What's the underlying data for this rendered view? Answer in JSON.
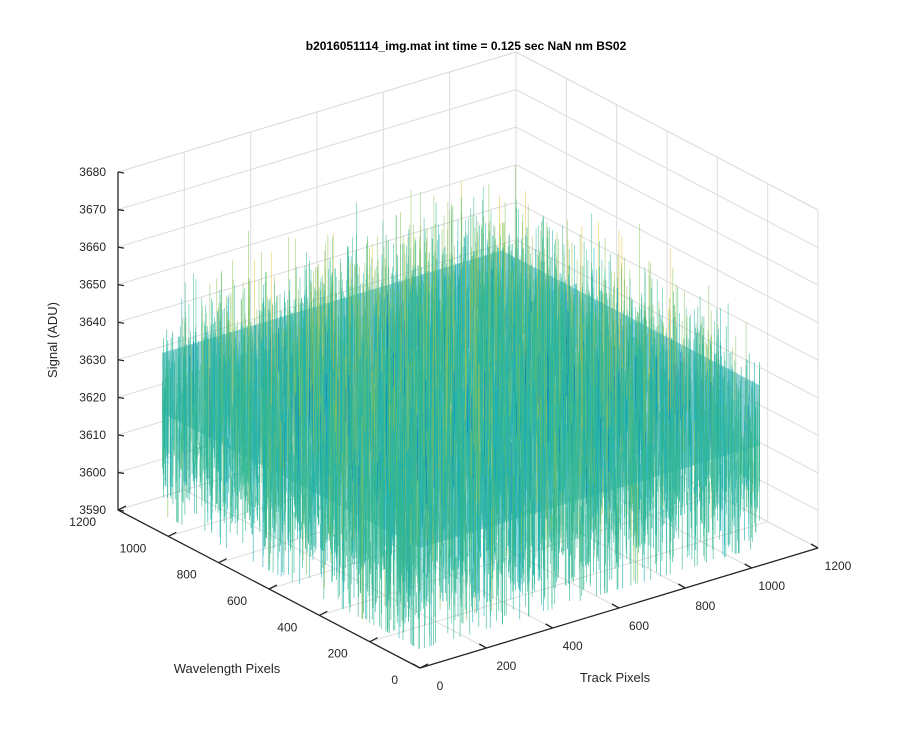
{
  "chart_data": {
    "type": "surface",
    "title": "b2016051114_img.mat int time = 0.125 sec  NaN nm BS02",
    "xlabel": "Track Pixels",
    "ylabel": "Wavelength Pixels",
    "zlabel": "Signal (ADU)",
    "xlim": [
      0,
      1200
    ],
    "ylim": [
      0,
      1200
    ],
    "zlim": [
      3590,
      3680
    ],
    "x_ticks": [
      "0",
      "200",
      "400",
      "600",
      "800",
      "1000",
      "1200"
    ],
    "y_ticks": [
      "0",
      "200",
      "400",
      "600",
      "800",
      "1000",
      "1200"
    ],
    "z_ticks": [
      "3590",
      "3600",
      "3610",
      "3620",
      "3630",
      "3640",
      "3650",
      "3660",
      "3670",
      "3680"
    ],
    "surface": {
      "x_extent": [
        0,
        1024
      ],
      "y_extent": [
        0,
        1024
      ],
      "mean_signal": 3630,
      "min_signal": 3595,
      "max_signal": 3672,
      "colormap": [
        "#0072bd",
        "#1cb0b8",
        "#33b790",
        "#8cc15a",
        "#e6c63a"
      ]
    },
    "grid": true
  }
}
